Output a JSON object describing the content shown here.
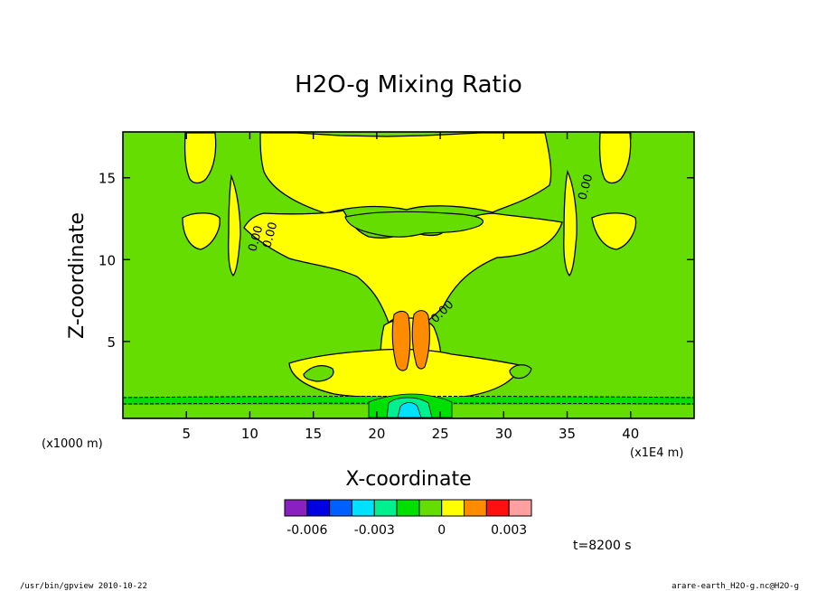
{
  "chart_data": {
    "type": "heatmap",
    "title": "H2O-g Mixing Ratio",
    "xlabel": "X-coordinate",
    "ylabel": "Z-coordinate",
    "x_unit_left": "(x1000 m)",
    "x_unit_right": "(x1E4 m)",
    "xlim": [
      0,
      45
    ],
    "ylim": [
      0.3,
      17.8
    ],
    "x_ticks": [
      5,
      10,
      15,
      20,
      25,
      30,
      35,
      40
    ],
    "y_ticks": [
      5,
      10,
      15
    ],
    "contour_labels": [
      "0.00",
      "0.00",
      "0.00",
      "0.00"
    ],
    "colorbar": {
      "colors": [
        "#8a20c0",
        "#0000e0",
        "#0060ff",
        "#00e0ff",
        "#00f090",
        "#00e000",
        "#66dd00",
        "#ffff00",
        "#ff8c00",
        "#ff1010",
        "#ff9f9f"
      ],
      "tick_labels": [
        "-0.006",
        "-0.003",
        "0",
        "0.003"
      ],
      "tick_values": [
        -0.006,
        -0.003,
        0,
        0.003
      ],
      "range": [
        -0.007,
        0.004
      ]
    },
    "time_label": "t=8200 s",
    "footer_left": "/usr/bin/gpview  2010-10-22",
    "footer_right": "arare-earth_H2O-g.nc@H2O-g"
  }
}
